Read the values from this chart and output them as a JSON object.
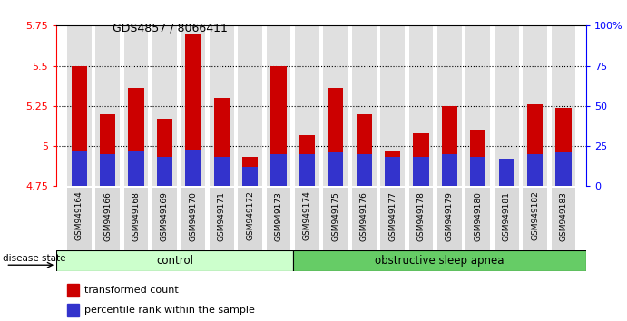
{
  "title": "GDS4857 / 8066411",
  "samples": [
    "GSM949164",
    "GSM949166",
    "GSM949168",
    "GSM949169",
    "GSM949170",
    "GSM949171",
    "GSM949172",
    "GSM949173",
    "GSM949174",
    "GSM949175",
    "GSM949176",
    "GSM949177",
    "GSM949178",
    "GSM949179",
    "GSM949180",
    "GSM949181",
    "GSM949182",
    "GSM949183"
  ],
  "red_values": [
    5.5,
    5.2,
    5.36,
    5.17,
    5.7,
    5.3,
    4.93,
    5.5,
    5.07,
    5.36,
    5.2,
    4.97,
    5.08,
    5.25,
    5.1,
    4.92,
    5.26,
    5.24
  ],
  "blue_values": [
    4.97,
    4.95,
    4.97,
    4.93,
    4.98,
    4.93,
    4.87,
    4.95,
    4.95,
    4.96,
    4.95,
    4.93,
    4.93,
    4.95,
    4.93,
    4.92,
    4.95,
    4.96
  ],
  "ymin": 4.75,
  "ymax": 5.75,
  "yticks": [
    4.75,
    5.0,
    5.25,
    5.5,
    5.75
  ],
  "ytick_labels": [
    "4.75",
    "5",
    "5.25",
    "5.5",
    "5.75"
  ],
  "right_yticks": [
    0,
    25,
    50,
    75,
    100
  ],
  "right_ytick_labels": [
    "0",
    "25",
    "50",
    "75",
    "100%"
  ],
  "grid_lines": [
    5.0,
    5.25,
    5.5
  ],
  "control_count": 8,
  "apnea_count": 10,
  "control_label": "control",
  "apnea_label": "obstructive sleep apnea",
  "disease_state_label": "disease state",
  "legend_red": "transformed count",
  "legend_blue": "percentile rank within the sample",
  "bar_width": 0.55,
  "red_color": "#cc0000",
  "blue_color": "#3333cc",
  "control_bg": "#ccffcc",
  "apnea_bg": "#66cc66",
  "bg_color": "#ffffff"
}
